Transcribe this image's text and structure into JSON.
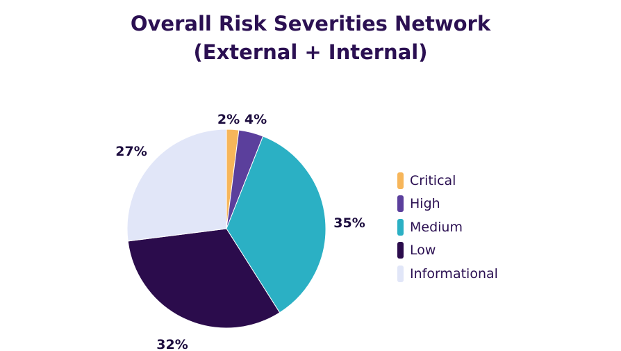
{
  "title_line1": "Overall Risk Severities Network",
  "title_line2": "(External + Internal)",
  "chart_data": {
    "type": "pie",
    "title": "Overall Risk Severities Network (External + Internal)",
    "categories": [
      "Critical",
      "High",
      "Medium",
      "Low",
      "Informational"
    ],
    "values": [
      2,
      4,
      35,
      32,
      27
    ],
    "labels": [
      "2%",
      "4%",
      "35%",
      "32%",
      "27%"
    ],
    "colors": [
      "#f7b65a",
      "#5b3f9c",
      "#2bb0c4",
      "#2b0c4c",
      "#e1e6f8"
    ],
    "legend_position": "right"
  }
}
